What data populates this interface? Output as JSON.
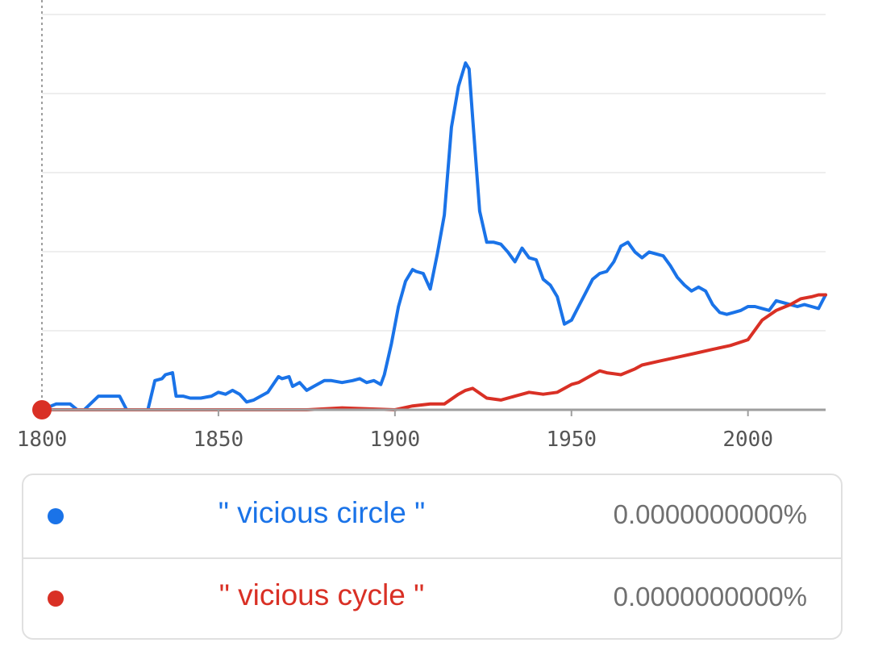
{
  "chart_data": {
    "type": "line",
    "x_ticks": [
      "1800",
      "1850",
      "1900",
      "1950",
      "2000"
    ],
    "xlim": [
      1800,
      2022
    ],
    "grid": true,
    "y_tick_labels_visible": false,
    "series": [
      {
        "name": "\" vicious circle \"",
        "color": "#1a73e8",
        "value_label": "0.0000000000%",
        "x": [
          1800,
          1804,
          1808,
          1810,
          1812,
          1816,
          1818,
          1822,
          1824,
          1828,
          1830,
          1832,
          1834,
          1835,
          1837,
          1838,
          1840,
          1842,
          1845,
          1848,
          1850,
          1852,
          1854,
          1856,
          1858,
          1860,
          1864,
          1867,
          1868,
          1870,
          1871,
          1873,
          1875,
          1877,
          1880,
          1882,
          1885,
          1888,
          1890,
          1892,
          1894,
          1896,
          1897,
          1899,
          1901,
          1903,
          1905,
          1906,
          1908,
          1910,
          1912,
          1914,
          1916,
          1918,
          1920,
          1921,
          1922,
          1924,
          1926,
          1928,
          1930,
          1932,
          1934,
          1936,
          1938,
          1940,
          1942,
          1944,
          1946,
          1948,
          1950,
          1952,
          1954,
          1956,
          1958,
          1960,
          1962,
          1964,
          1966,
          1968,
          1970,
          1972,
          1974,
          1976,
          1978,
          1980,
          1982,
          1984,
          1986,
          1988,
          1990,
          1992,
          1994,
          1996,
          1998,
          2000,
          2002,
          2004,
          2006,
          2008,
          2010,
          2012,
          2014,
          2016,
          2018,
          2020,
          2022
        ],
        "y": [
          0.0,
          0.3,
          0.3,
          0.0,
          0.0,
          0.7,
          0.7,
          0.7,
          0.0,
          0.0,
          0.0,
          1.5,
          1.6,
          1.8,
          1.9,
          0.7,
          0.7,
          0.6,
          0.6,
          0.7,
          0.9,
          0.8,
          1.0,
          0.8,
          0.4,
          0.5,
          0.9,
          1.7,
          1.6,
          1.7,
          1.2,
          1.4,
          1.0,
          1.2,
          1.5,
          1.5,
          1.4,
          1.5,
          1.6,
          1.4,
          1.5,
          1.3,
          1.8,
          3.4,
          5.3,
          6.6,
          7.2,
          7.1,
          7.0,
          6.2,
          8.0,
          10.0,
          14.5,
          16.6,
          17.8,
          17.5,
          15.0,
          10.2,
          8.6,
          8.6,
          8.5,
          8.1,
          7.6,
          8.3,
          7.8,
          7.7,
          6.7,
          6.4,
          5.8,
          4.4,
          4.6,
          5.3,
          6.0,
          6.7,
          7.0,
          7.1,
          7.6,
          8.4,
          8.6,
          8.1,
          7.8,
          8.1,
          8.0,
          7.9,
          7.4,
          6.8,
          6.4,
          6.1,
          6.3,
          6.1,
          5.4,
          5.0,
          4.9,
          5.0,
          5.1,
          5.3,
          5.3,
          5.2,
          5.1,
          5.6,
          5.5,
          5.4,
          5.3,
          5.4,
          5.3,
          5.2,
          5.9
        ]
      },
      {
        "name": "\" vicious cycle \"",
        "color": "#d93025",
        "value_label": "0.0000000000%",
        "x": [
          1800,
          1850,
          1875,
          1885,
          1900,
          1905,
          1910,
          1914,
          1918,
          1920,
          1922,
          1926,
          1930,
          1934,
          1938,
          1942,
          1946,
          1950,
          1952,
          1956,
          1958,
          1960,
          1964,
          1968,
          1970,
          1975,
          1980,
          1985,
          1990,
          1995,
          2000,
          2004,
          2008,
          2012,
          2015,
          2018,
          2020,
          2022
        ],
        "y": [
          0.0,
          0.0,
          0.0,
          0.1,
          0.0,
          0.2,
          0.3,
          0.3,
          0.8,
          1.0,
          1.1,
          0.6,
          0.5,
          0.7,
          0.9,
          0.8,
          0.9,
          1.3,
          1.4,
          1.8,
          2.0,
          1.9,
          1.8,
          2.1,
          2.3,
          2.5,
          2.7,
          2.9,
          3.1,
          3.3,
          3.6,
          4.6,
          5.1,
          5.4,
          5.7,
          5.8,
          5.9,
          5.9
        ]
      }
    ]
  },
  "legend": {
    "items": [
      {
        "label": "\" vicious circle \"",
        "value": "0.0000000000%",
        "color": "#1a73e8"
      },
      {
        "label": "\" vicious cycle \"",
        "value": "0.0000000000%",
        "color": "#d93025"
      }
    ]
  }
}
